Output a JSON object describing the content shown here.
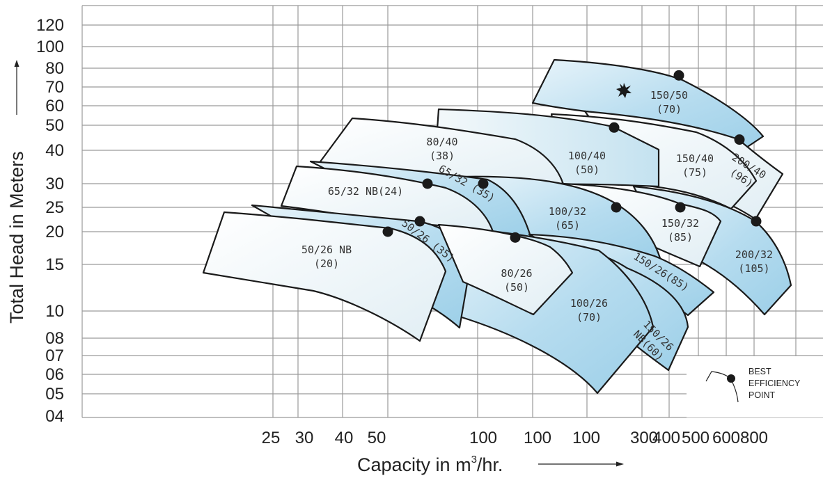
{
  "chart_data": {
    "type": "area",
    "ylabel": "Total Head in Meters",
    "xlabel_main": "Capacity in m",
    "xlabel_sup": "3",
    "xlabel_tail": "/hr.",
    "y_ticks": [
      "120",
      "100",
      "80",
      "70",
      "60",
      "50",
      "40",
      "30",
      "25",
      "20",
      "15",
      "10",
      "08",
      "07",
      "06",
      "05",
      "04"
    ],
    "x_ticks": [
      "25",
      "30",
      "40",
      "50",
      "100",
      "100",
      "100",
      "300",
      "400",
      "500",
      "600",
      "800"
    ],
    "y_scale": "log",
    "x_scale": "log",
    "grid": true,
    "series": [
      {
        "name": "50/26  NB\n(20)",
        "label_lines": [
          "50/26  NB",
          "(20)"
        ],
        "bep": [
          55,
          20
        ]
      },
      {
        "name": "50/26 (35)",
        "label_lines": [
          "50/26 (35)"
        ],
        "bep": [
          66,
          22
        ]
      },
      {
        "name": "65/32  NB(24)",
        "label_lines": [
          "65/32  NB(24)"
        ],
        "bep": [
          68,
          30
        ]
      },
      {
        "name": "65/32 (35)",
        "label_lines": [
          "65/32 (35)"
        ],
        "bep": [
          106,
          30
        ]
      },
      {
        "name": "80/40\n(38)",
        "label_lines": [
          "80/40",
          "(38)"
        ],
        "bep": null
      },
      {
        "name": "80/26\n(50)",
        "label_lines": [
          "80/26",
          "(50)"
        ],
        "bep": [
          114,
          19
        ]
      },
      {
        "name": "100/26\n(70)",
        "label_lines": [
          "100/26",
          "(70)"
        ],
        "bep": null
      },
      {
        "name": "100/32\n(65)",
        "label_lines": [
          "100/32",
          "(65)"
        ],
        "bep": [
          236,
          25
        ]
      },
      {
        "name": "100/40\n(50)",
        "label_lines": [
          "100/40",
          "(50)"
        ],
        "bep": [
          234,
          49
        ]
      },
      {
        "name": "150/26(85)",
        "label_lines": [
          "150/26(85)"
        ],
        "bep": null
      },
      {
        "name": "150/26\nNB(60)",
        "label_lines": [
          "150/26",
          "NB(60)"
        ],
        "bep": null
      },
      {
        "name": "150/32\n(85)",
        "label_lines": [
          "150/32",
          "(85)"
        ],
        "bep": [
          390,
          25
        ]
      },
      {
        "name": "150/40\n(75)",
        "label_lines": [
          "150/40",
          "(75)"
        ],
        "bep": null
      },
      {
        "name": "150/50\n(70)",
        "label_lines": [
          "150/50",
          "(70)"
        ],
        "bep": [
          400,
          76
        ]
      },
      {
        "name": "200/40\n(96)",
        "label_lines": [
          "200/40",
          "(96)"
        ],
        "bep": [
          550,
          44
        ]
      },
      {
        "name": "200/32\n(105)",
        "label_lines": [
          "200/32",
          "(105)"
        ],
        "bep": [
          610,
          22
        ]
      }
    ],
    "legend": {
      "position": "bottom-right",
      "lines": [
        "BEST",
        "EFFICIENCY",
        "POINT"
      ]
    },
    "colors": {
      "zone_fill_light": "#eef5f8",
      "zone_fill_blue": "#a9d6ec",
      "outline": "#1a1a1a",
      "grid": "#9a9a9a"
    }
  }
}
